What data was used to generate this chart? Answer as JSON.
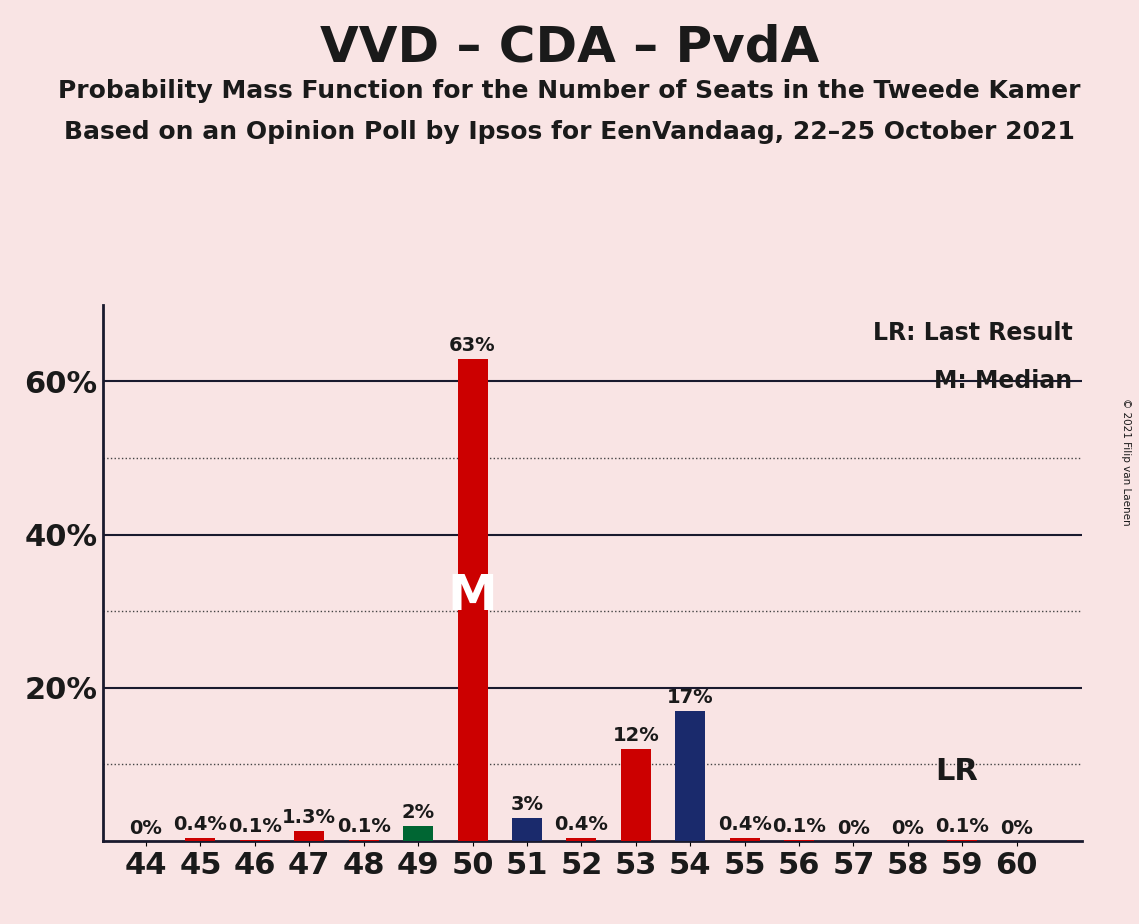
{
  "title": "VVD – CDA – PvdA",
  "subtitle1": "Probability Mass Function for the Number of Seats in the Tweede Kamer",
  "subtitle2": "Based on an Opinion Poll by Ipsos for EenVandaag, 22–25 October 2021",
  "copyright": "© 2021 Filip van Laenen",
  "background_color": "#f9e4e4",
  "seats": [
    44,
    45,
    46,
    47,
    48,
    49,
    50,
    51,
    52,
    53,
    54,
    55,
    56,
    57,
    58,
    59,
    60
  ],
  "vvd_values": [
    0.0,
    0.4,
    0.1,
    1.3,
    0.1,
    0.0,
    63.0,
    0.0,
    0.4,
    12.0,
    0.0,
    0.4,
    0.1,
    0.0,
    0.0,
    0.1,
    0.0
  ],
  "cda_values": [
    0.0,
    0.0,
    0.0,
    0.0,
    0.0,
    0.0,
    0.0,
    3.0,
    0.0,
    0.0,
    17.0,
    0.0,
    0.0,
    0.0,
    0.0,
    0.0,
    0.0
  ],
  "pvda_values": [
    0.0,
    0.0,
    0.0,
    0.0,
    0.0,
    2.0,
    0.0,
    0.0,
    0.0,
    0.0,
    0.0,
    0.0,
    0.0,
    0.0,
    0.0,
    0.0,
    0.0
  ],
  "vvd_color": "#cc0000",
  "cda_color": "#1a2a6c",
  "pvda_color": "#006633",
  "bar_labels": [
    "0%",
    "0.4%",
    "0.1%",
    "1.3%",
    "0.1%",
    "2%",
    "63%",
    "3%",
    "0.4%",
    "12%",
    "17%",
    "0.4%",
    "0.1%",
    "0%",
    "0%",
    "0.1%",
    "0%"
  ],
  "solid_hlines": [
    20,
    40,
    60
  ],
  "dotted_hlines": [
    10,
    30,
    50
  ],
  "ytick_vals": [
    20,
    40,
    60
  ],
  "ytick_labels": [
    "20%",
    "40%",
    "60%"
  ],
  "ylim": [
    0,
    70
  ],
  "xlim": [
    43.2,
    61.2
  ],
  "bar_width": 0.55,
  "median_seat": 50,
  "lr_seat": 54,
  "title_fontsize": 36,
  "subtitle_fontsize": 18,
  "tick_fontsize": 22,
  "label_fontsize": 14,
  "legend_fontsize": 17,
  "m_fontsize": 36,
  "lr_text_fontsize": 22
}
